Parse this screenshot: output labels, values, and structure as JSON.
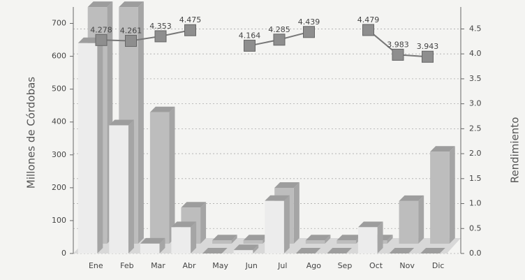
{
  "chart_data": {
    "type": "bar_line",
    "categories": [
      "Ene",
      "Feb",
      "Mar",
      "Abr",
      "May",
      "Jun",
      "Jul",
      "Ago",
      "Sep",
      "Oct",
      "Nov",
      "Dic"
    ],
    "ylabel": "Millones de Córdobas",
    "y2label": "Rendimiento",
    "ylim": [
      0,
      750
    ],
    "yticks": [
      0,
      100,
      200,
      300,
      400,
      500,
      600,
      700
    ],
    "y2lim": [
      0,
      4.94
    ],
    "y2ticks": [
      {
        "value": 0,
        "label": "0.0"
      },
      0.5,
      {
        "value": 1,
        "label": "1.0"
      },
      1.5,
      {
        "value": 2,
        "label": "2.0"
      },
      2.5,
      {
        "value": 3,
        "label": "3.0"
      },
      3.5,
      {
        "value": 4,
        "label": "4.0"
      },
      4.5
    ],
    "grid": true,
    "series": [
      {
        "color": "#bdbdbd",
        "values": [
          720,
          720,
          400,
          110,
          10,
          10,
          170,
          10,
          10,
          10,
          130,
          280
        ]
      },
      {
        "color": "#ececec",
        "values": [
          640,
          390,
          30,
          80,
          0,
          10,
          160,
          0,
          0,
          80,
          0,
          0
        ]
      },
      {
        "color": "#8e8e8e",
        "axis": "y2",
        "values": [
          4.278,
          4.261,
          4.353,
          4.475,
          null,
          4.164,
          4.285,
          4.439,
          null,
          4.479,
          3.983,
          3.943
        ]
      }
    ]
  }
}
